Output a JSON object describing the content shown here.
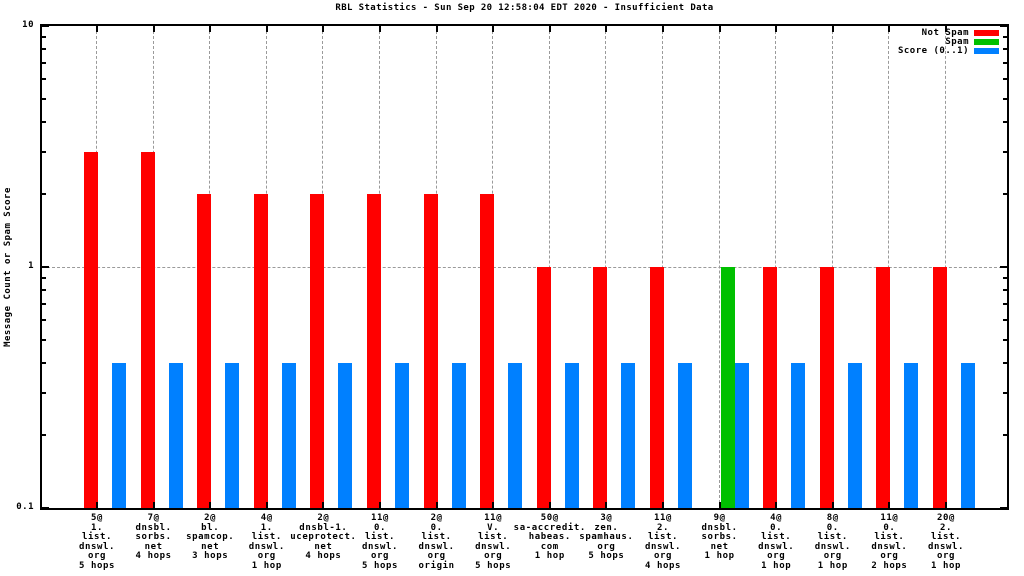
{
  "title": "RBL Statistics - Sun Sep 20 12:58:04 EDT 2020 - Insufficient Data",
  "colors": {
    "not_spam": "#ff0000",
    "spam": "#00c000",
    "score": "#0080ff",
    "grid": "#9a9a9a",
    "axis": "#000000",
    "background": "#ffffff"
  },
  "chart_data": {
    "type": "bar",
    "title": "RBL Statistics - Sun Sep 20 12:58:04 EDT 2020 - Insufficient Data",
    "xlabel": "",
    "ylabel": "Message Count or Spam Score",
    "yscale": "log",
    "ylim": [
      0.1,
      10
    ],
    "ytick_major_labels": [
      "10",
      "1",
      "0.1"
    ],
    "ytick_major_values": [
      10,
      1,
      0.1
    ],
    "ytick_minor_values": [
      0.2,
      0.3,
      0.4,
      0.5,
      0.6,
      0.7,
      0.8,
      0.9,
      2,
      3,
      4,
      5,
      6,
      7,
      8,
      9
    ],
    "grid": {
      "horizontal_dotted_at": [
        1
      ],
      "vertical_dotted": "one per cluster center"
    },
    "legend_position": "top-right-inside",
    "categories": [
      [
        "5@",
        "1.",
        "list.",
        "dnswl.",
        "org",
        "5 hops"
      ],
      [
        "7@",
        "dnsbl.",
        "sorbs.",
        "net",
        "4 hops"
      ],
      [
        "2@",
        "bl.",
        "spamcop.",
        "net",
        "3 hops"
      ],
      [
        "4@",
        "1.",
        "list.",
        "dnswl.",
        "org",
        "1 hop"
      ],
      [
        "2@",
        "dnsbl-1.",
        "uceprotect.",
        "net",
        "4 hops"
      ],
      [
        "11@",
        "0.",
        "list.",
        "dnswl.",
        "org",
        "5 hops"
      ],
      [
        "2@",
        "0.",
        "list.",
        "dnswl.",
        "org",
        "origin"
      ],
      [
        "11@",
        "V.",
        "list.",
        "dnswl.",
        "org",
        "5 hops"
      ],
      [
        "50@",
        "sa-accredit.",
        "habeas.",
        "com",
        "1 hop"
      ],
      [
        "3@",
        "zen.",
        "spamhaus.",
        "org",
        "5 hops"
      ],
      [
        "11@",
        "2.",
        "list.",
        "dnswl.",
        "org",
        "4 hops"
      ],
      [
        "9@",
        "dnsbl.",
        "sorbs.",
        "net",
        "1 hop"
      ],
      [
        "4@",
        "0.",
        "list.",
        "dnswl.",
        "org",
        "1 hop"
      ],
      [
        "8@",
        "0.",
        "list.",
        "dnswl.",
        "org",
        "1 hop"
      ],
      [
        "11@",
        "0.",
        "list.",
        "dnswl.",
        "org",
        "2 hops"
      ],
      [
        "20@",
        "2.",
        "list.",
        "dnswl.",
        "org",
        "1 hop"
      ]
    ],
    "series": [
      {
        "name": "Not Spam",
        "color": "#ff0000",
        "values": [
          3,
          3,
          2,
          2,
          2,
          2,
          2,
          2,
          1,
          1,
          1,
          null,
          1,
          1,
          1,
          1
        ]
      },
      {
        "name": "Spam",
        "color": "#00c000",
        "values": [
          null,
          null,
          null,
          null,
          null,
          null,
          null,
          null,
          null,
          null,
          null,
          1,
          null,
          null,
          null,
          null
        ]
      },
      {
        "name": "Score (0..1)",
        "color": "#0080ff",
        "values": [
          0.4,
          0.4,
          0.4,
          0.4,
          0.4,
          0.4,
          0.4,
          0.4,
          0.4,
          0.4,
          0.4,
          0.4,
          0.4,
          0.4,
          0.4,
          0.4
        ]
      }
    ]
  }
}
